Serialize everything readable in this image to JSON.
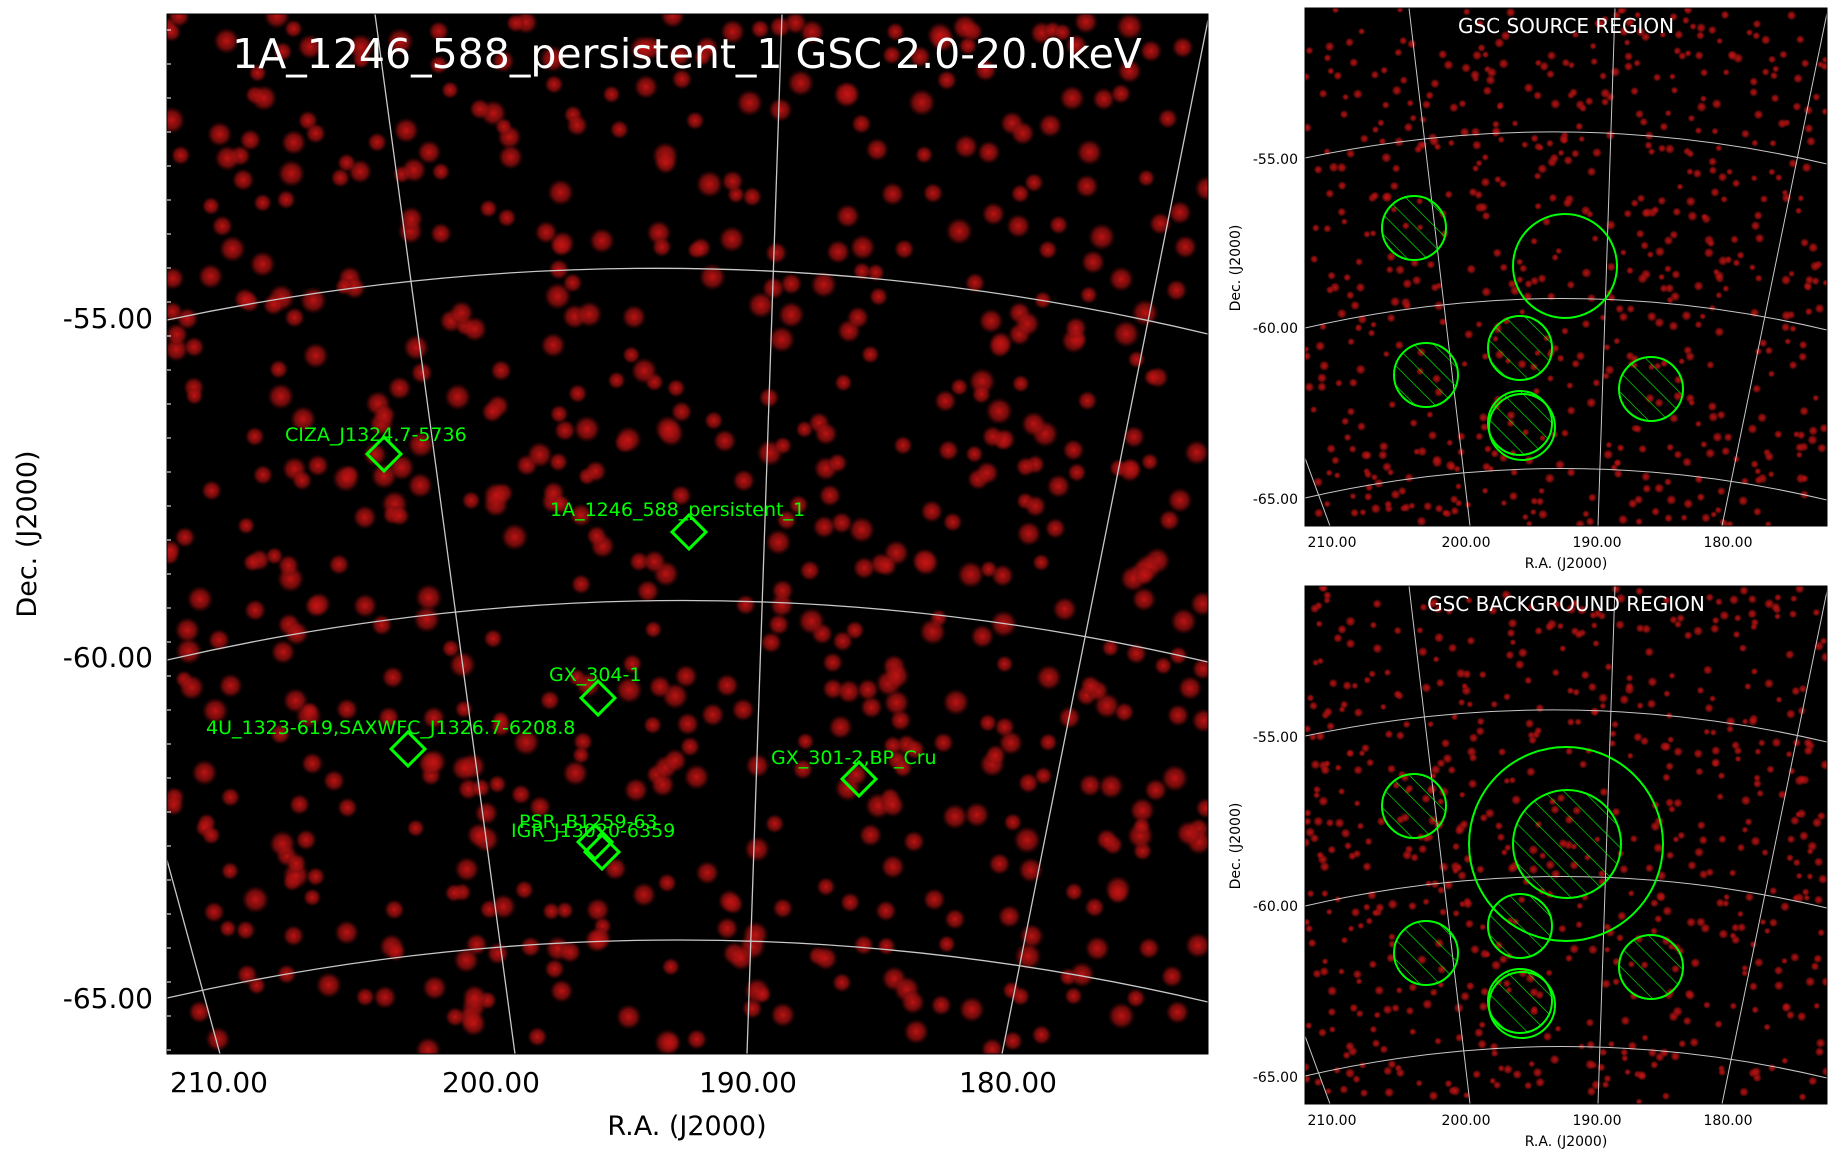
{
  "chart_data": [
    {
      "type": "scatter",
      "title": "1A_1246_588_persistent_1 GSC 2.0-20.0keV",
      "xlabel": "R.A. (J2000)",
      "ylabel": "Dec. (J2000)",
      "x_ticks": [
        "210.00",
        "200.00",
        "190.00",
        "180.00"
      ],
      "y_ticks": [
        "-55.00",
        "-60.00",
        "-65.00"
      ],
      "xlim": [
        212,
        172
      ],
      "ylim": [
        -66,
        -51
      ],
      "grid": true,
      "sources": [
        {
          "name": "CIZA_J1324.7-5736",
          "ra": 201.2,
          "dec": -57.6
        },
        {
          "name": "1A_1246_588_persistent_1",
          "ra": 191.5,
          "dec": -58.8
        },
        {
          "name": "GX_304-1",
          "ra": 195.3,
          "dec": -61.6
        },
        {
          "name": "4U_1323-619,SAXWFC_J1326.7-6208.8",
          "ra": 201.7,
          "dec": -62.0
        },
        {
          "name": "GX_301-2,BP_Cru",
          "ra": 186.6,
          "dec": -62.8
        },
        {
          "name": "PSR_B1259-63",
          "ra": 195.7,
          "dec": -63.8
        },
        {
          "name": "IGR_J13020-6359",
          "ra": 195.5,
          "dec": -64.0
        }
      ]
    },
    {
      "type": "scatter",
      "title": "GSC SOURCE REGION",
      "xlabel": "R.A. (J2000)",
      "ylabel": "Dec. (J2000)",
      "x_ticks": [
        "210.00",
        "200.00",
        "190.00",
        "180.00"
      ],
      "y_ticks": [
        "-55.00",
        "-60.00",
        "-65.00"
      ],
      "grid": true
    },
    {
      "type": "scatter",
      "title": "GSC BACKGROUND REGION",
      "xlabel": "R.A. (J2000)",
      "ylabel": "Dec. (J2000)",
      "x_ticks": [
        "210.00",
        "200.00",
        "190.00",
        "180.00"
      ],
      "y_ticks": [
        "-55.00",
        "-60.00",
        "-65.00"
      ],
      "grid": true
    }
  ],
  "colors": {
    "background": "#000000",
    "photon": "#c81414",
    "region": "#00ff00",
    "grid": "#c8c8c8"
  }
}
